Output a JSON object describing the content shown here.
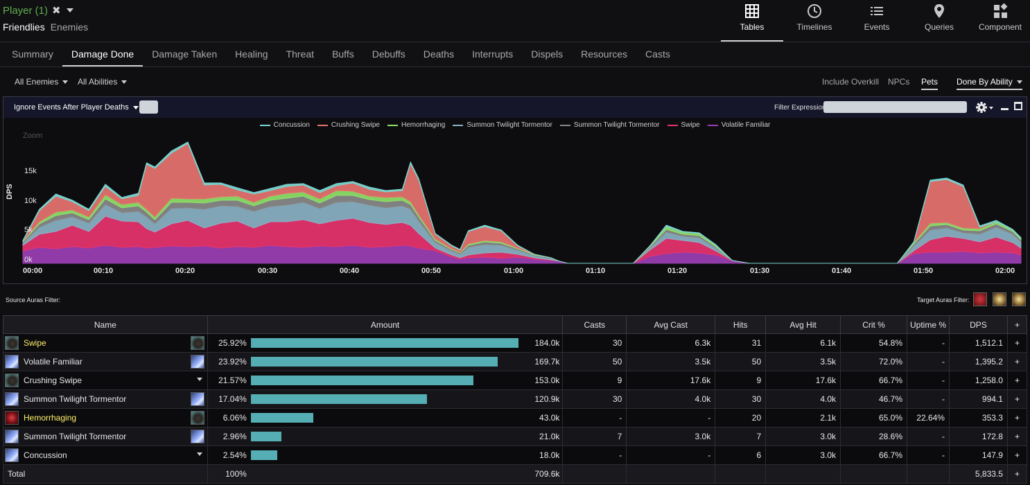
{
  "header": {
    "player_title": "Player (1)",
    "close_glyph": "✖",
    "side_tabs": [
      "Friendlies",
      "Enemies"
    ],
    "active_side": "Friendlies",
    "views": [
      {
        "label": "Tables",
        "icon": "table-icon"
      },
      {
        "label": "Timelines",
        "icon": "clock-icon"
      },
      {
        "label": "Events",
        "icon": "list-icon"
      },
      {
        "label": "Queries",
        "icon": "map-pin-icon"
      },
      {
        "label": "Component",
        "icon": "component-icon"
      }
    ],
    "active_view": "Tables"
  },
  "nav": {
    "tabs": [
      "Summary",
      "Damage Done",
      "Damage Taken",
      "Healing",
      "Threat",
      "Buffs",
      "Debuffs",
      "Deaths",
      "Interrupts",
      "Dispels",
      "Resources",
      "Casts"
    ],
    "active": "Damage Done"
  },
  "filters": {
    "enemies": "All Enemies",
    "abilities": "All Abilities",
    "include_overkill": "Include Overkill",
    "npcs": "NPCs",
    "pets": "Pets",
    "done_by": "Done By Ability"
  },
  "graph_panel": {
    "ignore_label": "Ignore Events After Player Deaths",
    "filter_label": "Filter Expression:",
    "filter_value": "",
    "zoom_label": "Zoom"
  },
  "chart_data": {
    "type": "area",
    "stacked": true,
    "ylabel": "DPS",
    "yticks": [
      "0k",
      "5k",
      "10k",
      "15k"
    ],
    "ylim": [
      0,
      20000
    ],
    "xticks": [
      "00:00",
      "00:10",
      "00:20",
      "00:30",
      "00:40",
      "00:50",
      "01:00",
      "01:10",
      "01:20",
      "01:30",
      "01:40",
      "01:50",
      "02:00"
    ],
    "xlim": [
      0,
      121
    ],
    "legend_position": "top-center",
    "x": [
      0,
      2,
      4,
      6,
      8,
      10,
      12,
      14,
      15,
      16,
      18,
      20,
      22,
      24,
      26,
      28,
      30,
      32,
      34,
      36,
      38,
      40,
      42,
      44,
      46,
      47,
      48,
      50,
      52,
      53,
      54,
      56,
      58,
      60,
      62,
      64,
      65,
      66,
      68,
      70,
      72,
      74,
      76,
      78,
      80,
      82,
      84,
      86,
      88,
      90,
      92,
      94,
      96,
      98,
      100,
      102,
      104,
      106,
      108,
      110,
      112,
      114,
      116,
      118,
      120,
      121
    ],
    "series": [
      {
        "name": "Volatile Familiar",
        "color": "#9b3fb5",
        "values": [
          1800,
          2300,
          2100,
          2400,
          2200,
          2600,
          2300,
          2400,
          2200,
          2300,
          2500,
          2400,
          2500,
          2200,
          2400,
          2300,
          2600,
          2400,
          2300,
          2500,
          2400,
          2600,
          2300,
          2400,
          2600,
          2500,
          2200,
          1800,
          900,
          600,
          800,
          900,
          700,
          900,
          600,
          400,
          300,
          0,
          0,
          0,
          0,
          0,
          1000,
          1400,
          1600,
          1500,
          1200,
          400,
          0,
          0,
          0,
          0,
          0,
          0,
          0,
          0,
          0,
          0,
          1400,
          1600,
          1600,
          1700,
          1500,
          1600,
          1500,
          1200
        ]
      },
      {
        "name": "Swipe",
        "color": "#e8336f",
        "values": [
          800,
          1900,
          2500,
          3100,
          2400,
          4200,
          3800,
          3600,
          2800,
          2200,
          3200,
          3800,
          2600,
          3600,
          3700,
          2800,
          3400,
          3600,
          4000,
          3200,
          3800,
          3900,
          3600,
          3200,
          3300,
          3000,
          2100,
          400,
          300,
          200,
          400,
          600,
          900,
          400,
          200,
          100,
          0,
          0,
          0,
          0,
          0,
          0,
          900,
          2200,
          1700,
          1500,
          600,
          0,
          0,
          0,
          0,
          0,
          0,
          0,
          0,
          0,
          0,
          0,
          400,
          1800,
          2300,
          1900,
          1600,
          2200,
          1500,
          1000
        ]
      },
      {
        "name": "Summon Twilight Tormentor",
        "color": "#8ab2c6",
        "values": [
          300,
          1000,
          1600,
          1200,
          1200,
          1700,
          1200,
          1500,
          1700,
          1200,
          2200,
          1800,
          2700,
          2500,
          2100,
          2400,
          2200,
          2400,
          2500,
          2200,
          2600,
          2400,
          2500,
          2400,
          2400,
          2300,
          1800,
          800,
          600,
          500,
          1100,
          1200,
          1000,
          600,
          300,
          200,
          0,
          0,
          0,
          0,
          0,
          0,
          300,
          900,
          600,
          700,
          400,
          0,
          0,
          0,
          0,
          0,
          0,
          0,
          0,
          0,
          0,
          0,
          700,
          1400,
          1200,
          800,
          1100,
          1400,
          1200,
          900
        ]
      },
      {
        "name": "Summon Twilight Tormentor",
        "color": "#8a8a8a",
        "values": [
          200,
          500,
          700,
          600,
          500,
          800,
          700,
          800,
          700,
          600,
          900,
          800,
          900,
          800,
          900,
          800,
          900,
          1000,
          900,
          800,
          1000,
          900,
          800,
          900,
          800,
          700,
          600,
          300,
          200,
          200,
          300,
          400,
          300,
          200,
          100,
          100,
          0,
          0,
          0,
          0,
          0,
          0,
          200,
          400,
          300,
          300,
          200,
          0,
          0,
          0,
          0,
          0,
          0,
          0,
          0,
          0,
          0,
          0,
          300,
          600,
          500,
          400,
          500,
          500,
          400,
          300
        ]
      },
      {
        "name": "Hemorrhaging",
        "color": "#8fe36a",
        "values": [
          100,
          300,
          500,
          400,
          400,
          600,
          500,
          500,
          400,
          400,
          600,
          500,
          600,
          500,
          600,
          500,
          600,
          700,
          600,
          600,
          700,
          600,
          500,
          600,
          500,
          400,
          300,
          200,
          100,
          100,
          200,
          200,
          200,
          100,
          100,
          0,
          0,
          0,
          0,
          0,
          0,
          0,
          100,
          400,
          300,
          300,
          200,
          0,
          0,
          0,
          0,
          0,
          0,
          0,
          0,
          0,
          0,
          0,
          200,
          400,
          300,
          300,
          300,
          300,
          200,
          200
        ]
      },
      {
        "name": "Crushing Swipe",
        "color": "#e8736f",
        "values": [
          0,
          1600,
          2300,
          1200,
          900,
          1200,
          800,
          1000,
          6500,
          7000,
          6500,
          8000,
          2000,
          1800,
          900,
          1200,
          800,
          1000,
          1000,
          900,
          700,
          1200,
          1000,
          800,
          900,
          5500,
          5000,
          700,
          400,
          300,
          1800,
          2000,
          1600,
          300,
          0,
          0,
          0,
          0,
          0,
          0,
          0,
          0,
          0,
          0,
          0,
          0,
          0,
          0,
          0,
          0,
          0,
          0,
          0,
          0,
          0,
          0,
          0,
          0,
          0,
          6000,
          6200,
          6000,
          200,
          0,
          0,
          0
        ]
      },
      {
        "name": "Concussion",
        "color": "#7ad8d2",
        "values": [
          100,
          200,
          300,
          200,
          200,
          300,
          200,
          300,
          200,
          200,
          300,
          200,
          300,
          200,
          300,
          200,
          300,
          300,
          200,
          300,
          300,
          200,
          300,
          200,
          200,
          200,
          200,
          100,
          100,
          100,
          100,
          200,
          100,
          100,
          0,
          0,
          0,
          0,
          0,
          0,
          0,
          0,
          0,
          200,
          100,
          100,
          100,
          0,
          0,
          0,
          0,
          0,
          0,
          0,
          0,
          0,
          0,
          0,
          100,
          200,
          200,
          200,
          200,
          200,
          100,
          100
        ]
      }
    ]
  },
  "legend": [
    {
      "name": "Concussion",
      "color": "#7ad8d2"
    },
    {
      "name": "Crushing Swipe",
      "color": "#e8736f"
    },
    {
      "name": "Hemorrhaging",
      "color": "#8fe36a"
    },
    {
      "name": "Summon Twilight Tormentor",
      "color": "#8ab2c6"
    },
    {
      "name": "Summon Twilight Tormentor",
      "color": "#8a8a8a"
    },
    {
      "name": "Swipe",
      "color": "#e8336f"
    },
    {
      "name": "Volatile Familiar",
      "color": "#9b3fb5"
    }
  ],
  "auras": {
    "source_label": "Source Auras Filter:",
    "target_label": "Target Auras Filter:"
  },
  "table": {
    "columns": [
      "Name",
      "Amount",
      "Casts",
      "Avg Cast",
      "Hits",
      "Avg Hit",
      "Crit %",
      "Uptime %",
      "DPS",
      "+"
    ],
    "rows": [
      {
        "name": "Swipe",
        "highlight": true,
        "icon": "rock-icon",
        "right": "icon",
        "pct": "25.92%",
        "fraction": 0.2592,
        "amount": "184.0k",
        "casts": "30",
        "avg_cast": "6.3k",
        "hits": "31",
        "avg_hit": "6.1k",
        "crit": "54.8%",
        "uptime": "-",
        "dps": "1,512.1"
      },
      {
        "name": "Volatile Familiar",
        "highlight": false,
        "icon": "spark-icon",
        "right": "icon",
        "pct": "23.92%",
        "fraction": 0.2392,
        "amount": "169.7k",
        "casts": "50",
        "avg_cast": "3.5k",
        "hits": "50",
        "avg_hit": "3.5k",
        "crit": "72.0%",
        "uptime": "-",
        "dps": "1,395.2"
      },
      {
        "name": "Crushing Swipe",
        "highlight": false,
        "icon": "rock-icon",
        "right": "caret",
        "pct": "21.57%",
        "fraction": 0.2157,
        "amount": "153.0k",
        "casts": "9",
        "avg_cast": "17.6k",
        "hits": "9",
        "avg_hit": "17.6k",
        "crit": "66.7%",
        "uptime": "-",
        "dps": "1,258.0"
      },
      {
        "name": "Summon Twilight Tormentor",
        "highlight": false,
        "icon": "spark-icon",
        "right": "icon",
        "pct": "17.04%",
        "fraction": 0.1704,
        "amount": "120.9k",
        "casts": "30",
        "avg_cast": "4.0k",
        "hits": "30",
        "avg_hit": "4.0k",
        "crit": "46.7%",
        "uptime": "-",
        "dps": "994.1"
      },
      {
        "name": "Hemorrhaging",
        "highlight": true,
        "icon": "blood-icon",
        "right": "icon",
        "pct": "6.06%",
        "fraction": 0.0606,
        "amount": "43.0k",
        "casts": "-",
        "avg_cast": "-",
        "hits": "20",
        "avg_hit": "2.1k",
        "crit": "65.0%",
        "uptime": "22.64%",
        "dps": "353.3"
      },
      {
        "name": "Summon Twilight Tormentor",
        "highlight": false,
        "icon": "spark-icon",
        "right": "icon",
        "pct": "2.96%",
        "fraction": 0.0296,
        "amount": "21.0k",
        "casts": "7",
        "avg_cast": "3.0k",
        "hits": "7",
        "avg_hit": "3.0k",
        "crit": "28.6%",
        "uptime": "-",
        "dps": "172.8"
      },
      {
        "name": "Concussion",
        "highlight": false,
        "icon": "spark-icon",
        "right": "caret",
        "pct": "2.54%",
        "fraction": 0.0254,
        "amount": "18.0k",
        "casts": "-",
        "avg_cast": "-",
        "hits": "6",
        "avg_hit": "3.0k",
        "crit": "66.7%",
        "uptime": "-",
        "dps": "147.9"
      }
    ],
    "total": {
      "label": "Total",
      "pct": "100%",
      "amount": "709.6k",
      "dps": "5,833.5"
    },
    "plus_glyph": "+"
  }
}
